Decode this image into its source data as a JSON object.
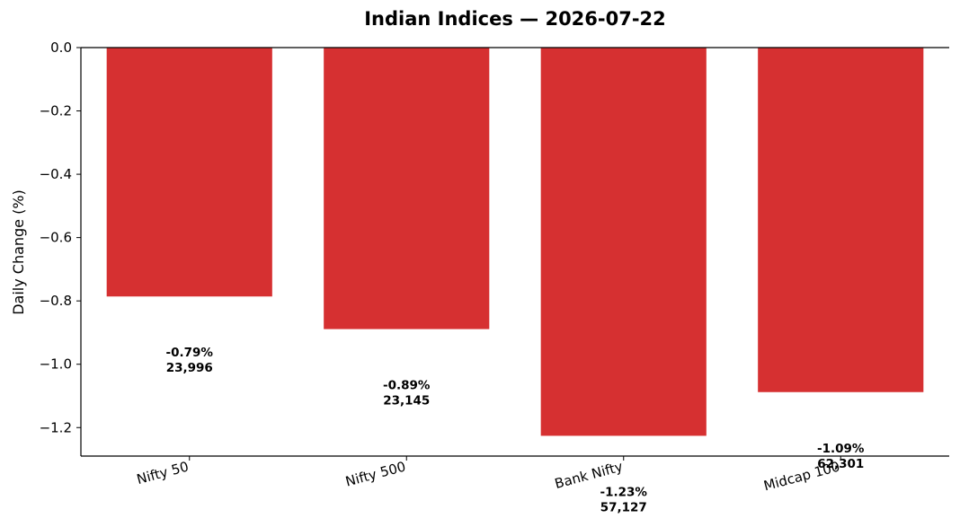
{
  "chart_data": {
    "type": "bar",
    "title": "Indian Indices — 2026-07-22",
    "xlabel": "",
    "ylabel": "Daily Change (%)",
    "ylim": [
      -1.29,
      0.0
    ],
    "yticks": [
      0.0,
      -0.2,
      -0.4,
      -0.6,
      -0.8,
      -1.0,
      -1.2
    ],
    "ytick_labels": [
      "0.0",
      "−0.2",
      "−0.4",
      "−0.6",
      "−0.8",
      "−1.0",
      "−1.2"
    ],
    "categories": [
      "Nifty 50",
      "Nifty 500",
      "Bank Nifty",
      "Midcap 100"
    ],
    "values": [
      -0.786,
      -0.889,
      -1.226,
      -1.088
    ],
    "data_labels": [
      {
        "change": "-0.79%",
        "level": "23,996"
      },
      {
        "change": "-0.89%",
        "level": "23,145"
      },
      {
        "change": "-1.23%",
        "level": "57,127"
      },
      {
        "change": "-1.09%",
        "level": "62,301"
      }
    ],
    "bar_color": "#d63031",
    "grid": false,
    "legend": "none"
  }
}
